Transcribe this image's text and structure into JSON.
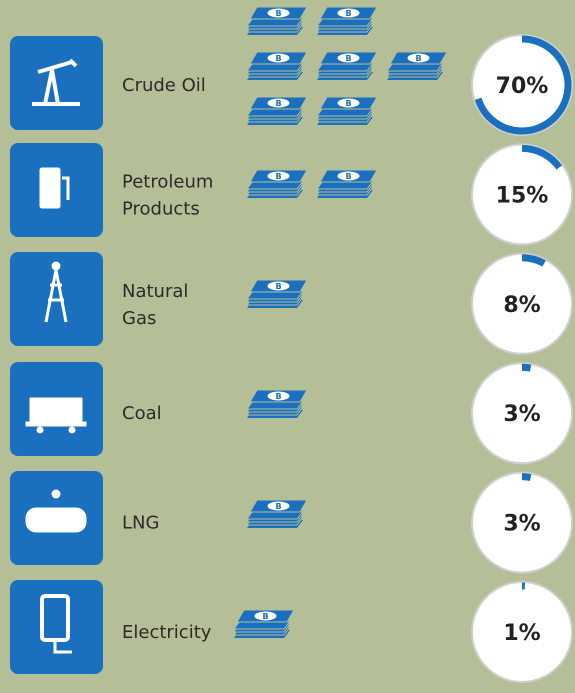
{
  "chart_data": {
    "type": "ring",
    "categories": [
      "Crude Oil",
      "Petroleum\nProducts",
      "Natural\nGas",
      "Coal",
      "LNG",
      "Electricity"
    ],
    "values": [
      70,
      15,
      8,
      3,
      3,
      1
    ],
    "value_labels": [
      "70%",
      "15%",
      "8%",
      "3%",
      "3%",
      "1%"
    ],
    "color": "#1a6fbf"
  }
}
